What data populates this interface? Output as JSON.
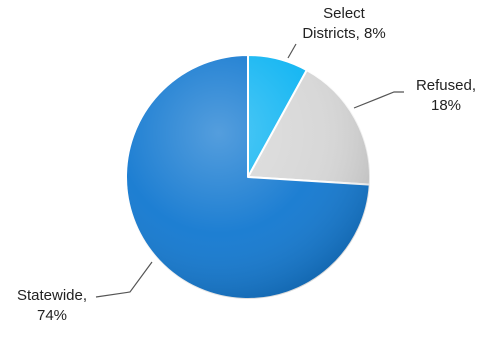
{
  "chart_data": {
    "type": "pie",
    "title": "",
    "start_angle_deg": 0,
    "direction": "clockwise",
    "slices": [
      {
        "name": "Select Districts",
        "value": 8,
        "value_label": "8%",
        "color": "#0EB4F2"
      },
      {
        "name": "Refused",
        "value": 18,
        "value_label": "18%",
        "color": "#D6D6D6"
      },
      {
        "name": "Statewide",
        "value": 74,
        "value_label": "74%",
        "color": "#1278D0"
      }
    ]
  },
  "labels": {
    "select_line1": "Select",
    "select_line2": "Districts, 8%",
    "refused_line1": "Refused,",
    "refused_line2": "18%",
    "statewide_line1": "Statewide,",
    "statewide_line2": "74%"
  }
}
